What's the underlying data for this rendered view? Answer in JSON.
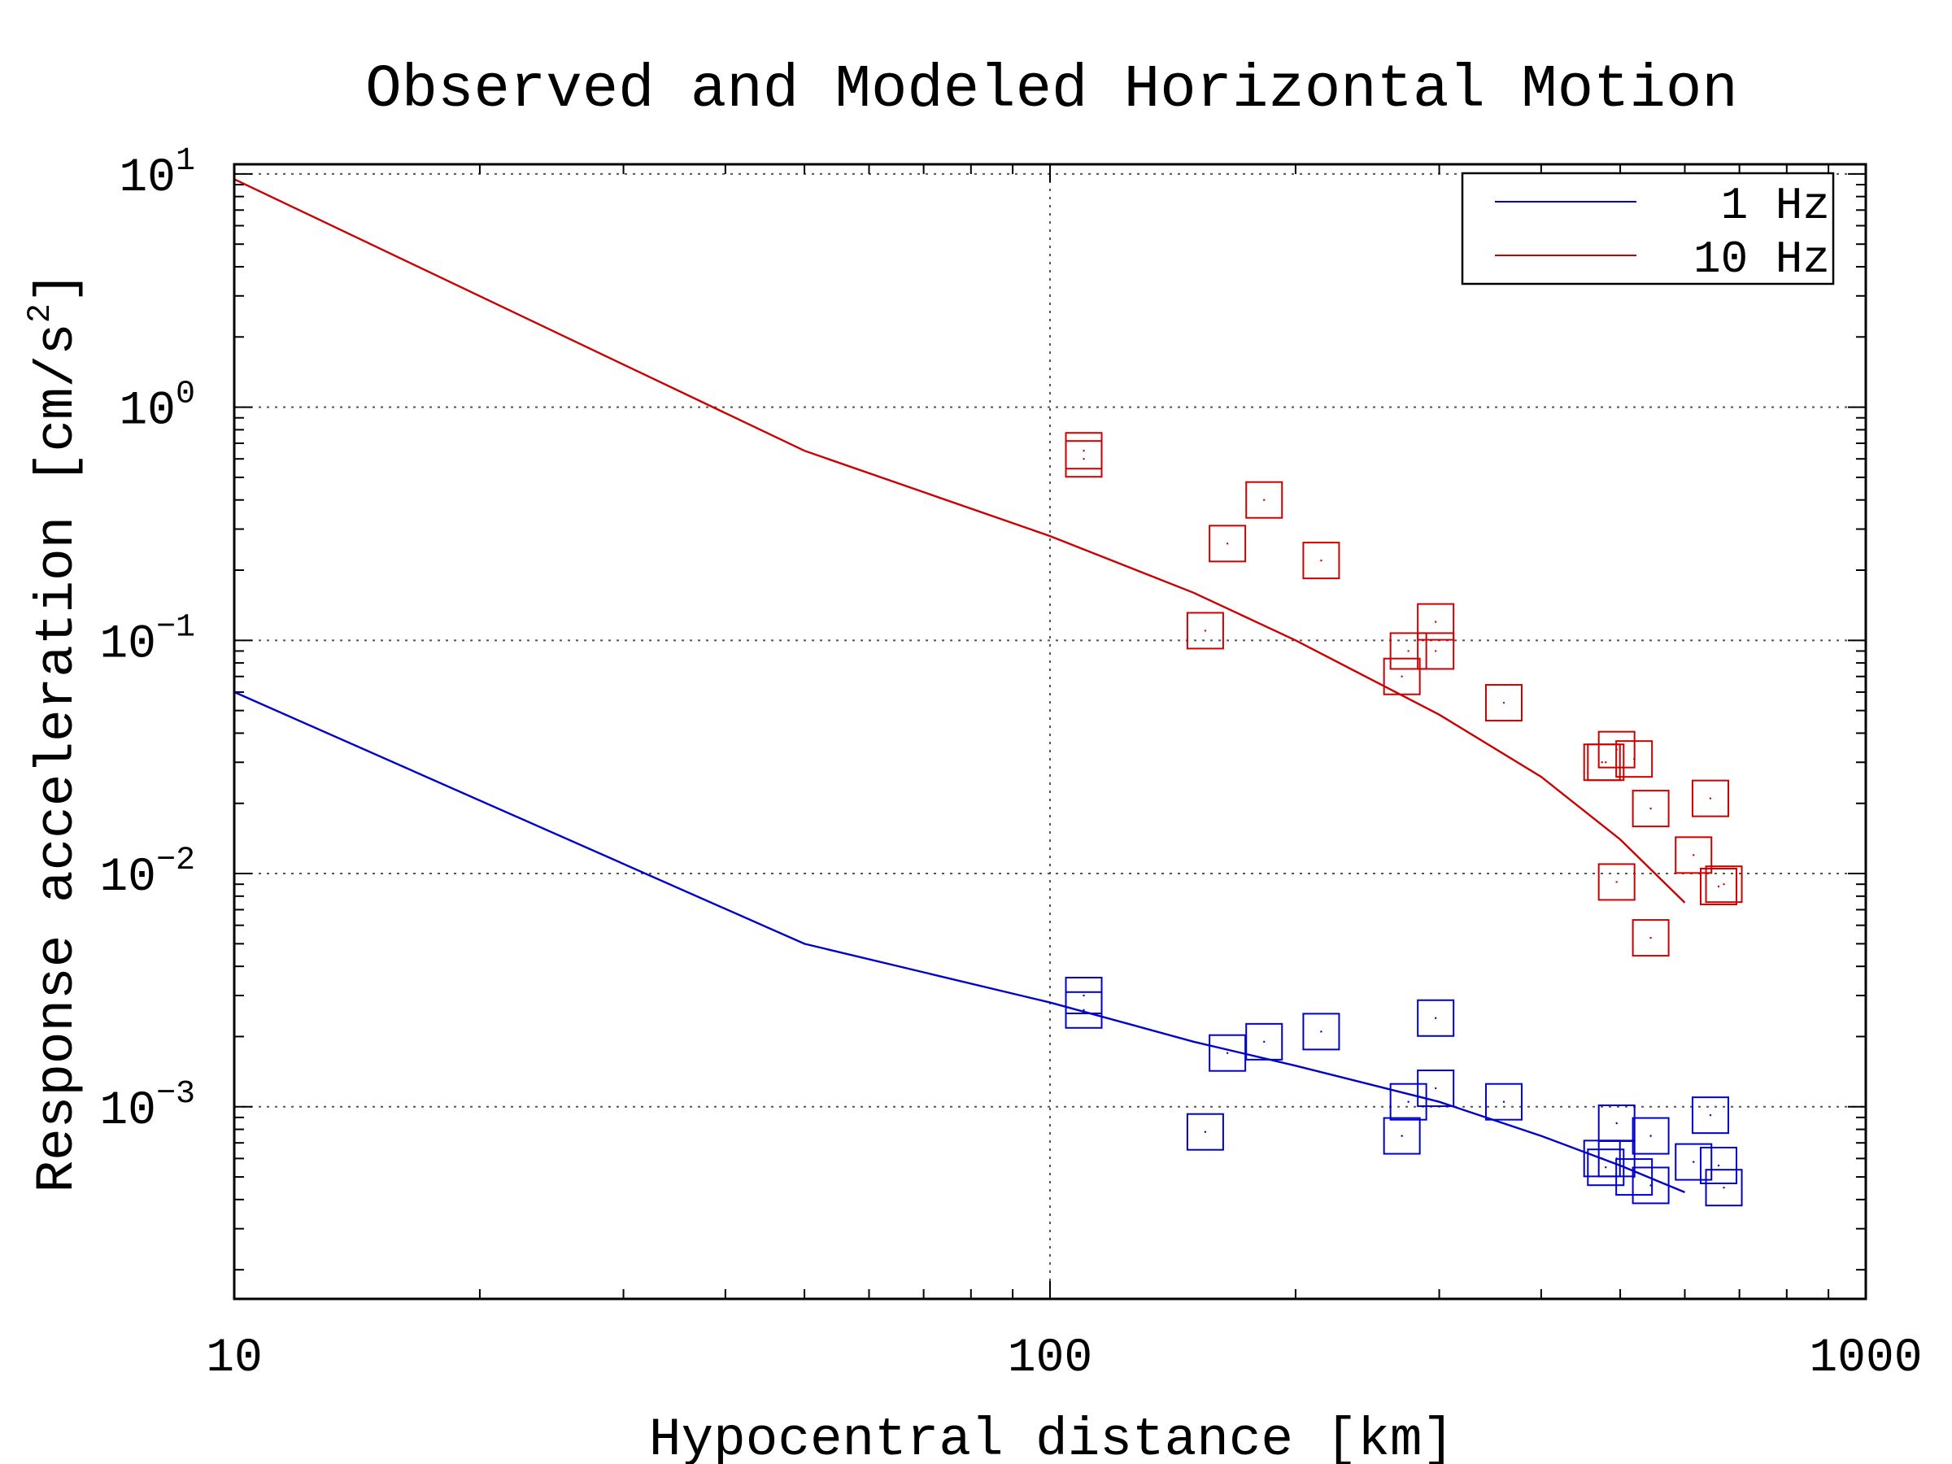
{
  "chart_data": {
    "type": "scatter",
    "title": "Observed and Modeled Horizontal Motion",
    "xlabel": "Hypocentral distance [km]",
    "ylabel": "Response acceleration [cm/s",
    "ylabel_sup": "2",
    "ylabel_close": "]",
    "x_scale": "log",
    "y_scale": "log",
    "xlim": [
      10,
      1000
    ],
    "ylim": [
      0.00015,
      11
    ],
    "x_ticks": [
      {
        "value": 10,
        "label": "10"
      },
      {
        "value": 100,
        "label": "100"
      },
      {
        "value": 1000,
        "label": "1000"
      }
    ],
    "y_ticks": [
      {
        "value": 10,
        "base": "10",
        "exp": "1"
      },
      {
        "value": 1,
        "base": "10",
        "exp": "0"
      },
      {
        "value": 0.1,
        "base": "10",
        "exp": "−1"
      },
      {
        "value": 0.01,
        "base": "10",
        "exp": "−2"
      },
      {
        "value": 0.001,
        "base": "10",
        "exp": "−3"
      }
    ],
    "grid": true,
    "legend_position": "top-right",
    "series": [
      {
        "name": "1 Hz",
        "color": "#0000cc",
        "kind": "model-line",
        "x": [
          10,
          50,
          100,
          150,
          200,
          300,
          400,
          500,
          600
        ],
        "y": [
          0.06,
          0.005,
          0.0028,
          0.0019,
          0.0015,
          0.00105,
          0.00075,
          0.00056,
          0.00043
        ]
      },
      {
        "name": "10 Hz",
        "color": "#cc0000",
        "kind": "model-line",
        "x": [
          10,
          50,
          100,
          150,
          200,
          300,
          400,
          500,
          600
        ],
        "y": [
          9.5,
          0.65,
          0.28,
          0.16,
          0.1,
          0.048,
          0.026,
          0.014,
          0.0075
        ]
      },
      {
        "color": "#0000cc",
        "kind": "observed-markers",
        "x": [
          110,
          110,
          155,
          165,
          183,
          215,
          270,
          275,
          297,
          297,
          360,
          475,
          480,
          495,
          495,
          520,
          545,
          545,
          615,
          645,
          660,
          670
        ],
        "y": [
          0.003,
          0.0026,
          0.00078,
          0.0017,
          0.0019,
          0.0021,
          0.00075,
          0.00105,
          0.0024,
          0.0012,
          0.00105,
          0.0006,
          0.00055,
          0.00085,
          0.0006,
          0.0005,
          0.00075,
          0.00046,
          0.00058,
          0.00092,
          0.00056,
          0.00045
        ]
      },
      {
        "color": "#cc0000",
        "kind": "observed-markers",
        "x": [
          110,
          110,
          155,
          165,
          183,
          215,
          270,
          275,
          297,
          297,
          360,
          475,
          480,
          495,
          495,
          520,
          545,
          545,
          615,
          645,
          660,
          670
        ],
        "y": [
          0.65,
          0.6,
          0.11,
          0.26,
          0.4,
          0.22,
          0.07,
          0.09,
          0.12,
          0.09,
          0.054,
          0.03,
          0.03,
          0.0092,
          0.034,
          0.031,
          0.019,
          0.0053,
          0.012,
          0.021,
          0.0088,
          0.009
        ]
      }
    ]
  }
}
